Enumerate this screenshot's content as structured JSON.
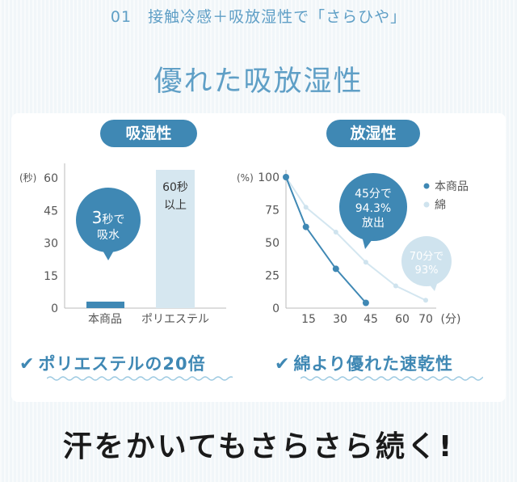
{
  "section_heading": "01　接触冷感＋吸放湿性で「さらひや」",
  "title": "優れた吸放湿性",
  "colors": {
    "accent": "#3f88b4",
    "light": "#d6e7f0",
    "cotton_line": "#cfe3ee"
  },
  "chart_data": [
    {
      "type": "bar",
      "title": "吸湿性",
      "unit": "(秒)",
      "categories": [
        "本商品",
        "ポリエステル"
      ],
      "values": [
        3,
        60
      ],
      "yticks": [
        0,
        15,
        30,
        45,
        60
      ],
      "ylim": [
        0,
        60
      ],
      "annotations": {
        "bubble_line1": "3",
        "bubble_line1_suffix": "秒で",
        "bubble_line2": "吸水",
        "bar_label_line1": "60秒",
        "bar_label_line2": "以上"
      }
    },
    {
      "type": "line",
      "title": "放湿性",
      "yunit": "(%)",
      "xunit": "(分)",
      "xticks": [
        15,
        30,
        45,
        60,
        70
      ],
      "yticks": [
        0,
        25,
        50,
        75,
        100
      ],
      "xlim": [
        0,
        70
      ],
      "ylim": [
        0,
        100
      ],
      "series": [
        {
          "name": "本商品",
          "x": [
            0,
            10,
            25,
            40
          ],
          "y": [
            100,
            62,
            30,
            4
          ]
        },
        {
          "name": "綿",
          "x": [
            0,
            10,
            25,
            40,
            55,
            70
          ],
          "y": [
            100,
            77,
            58,
            35,
            17,
            6
          ]
        }
      ],
      "annotations": {
        "bubble_main_line1": "45分で",
        "bubble_main_line2": "94.3%",
        "bubble_main_line3": "放出",
        "bubble_cotton_line1": "70分で",
        "bubble_cotton_line2": "93%"
      }
    }
  ],
  "conclusions": {
    "left": "ポリエステルの20倍",
    "right": "綿より優れた速乾性"
  },
  "slogan": "汗をかいてもさらさら続く!"
}
